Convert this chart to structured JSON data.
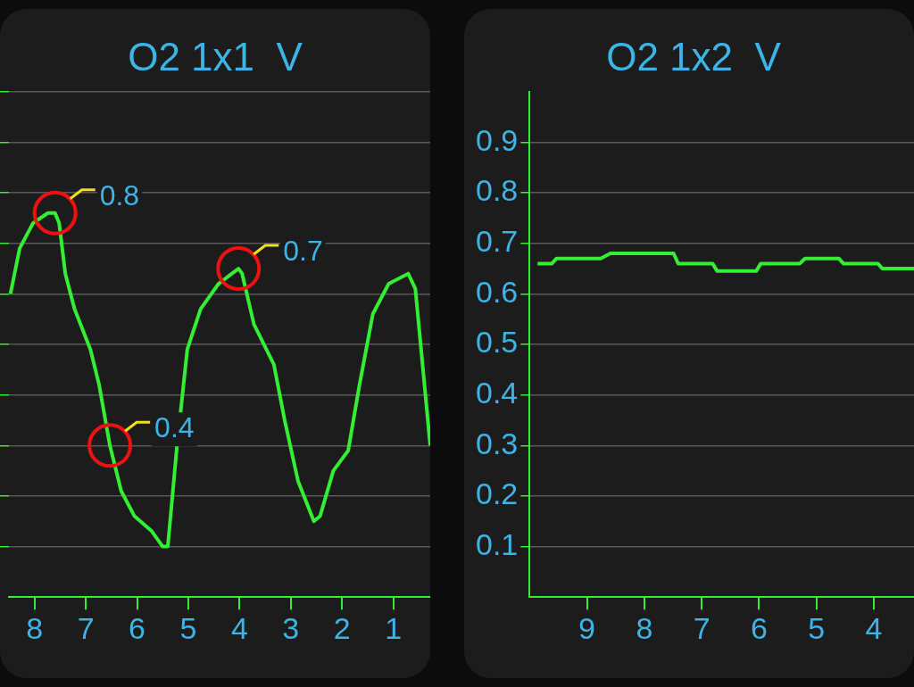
{
  "chart_data": [
    {
      "type": "line",
      "title": "O2 1x1  V",
      "x": [
        8.47,
        8.29,
        8.03,
        7.74,
        7.6,
        7.52,
        7.4,
        7.22,
        6.91,
        6.74,
        6.53,
        6.31,
        6.05,
        5.71,
        5.5,
        5.4,
        5.22,
        5.02,
        4.76,
        4.41,
        4.02,
        3.95,
        3.72,
        3.33,
        3.12,
        2.86,
        2.55,
        2.43,
        2.17,
        1.88,
        1.66,
        1.4,
        1.09,
        0.71,
        0.57,
        0.28
      ],
      "series": [
        {
          "color": "#33ee33",
          "values": [
            0.6,
            0.69,
            0.74,
            0.76,
            0.76,
            0.74,
            0.64,
            0.57,
            0.49,
            0.42,
            0.3,
            0.21,
            0.16,
            0.13,
            0.1,
            0.1,
            0.3,
            0.49,
            0.57,
            0.62,
            0.65,
            0.64,
            0.54,
            0.46,
            0.35,
            0.23,
            0.15,
            0.16,
            0.25,
            0.29,
            0.42,
            0.56,
            0.62,
            0.64,
            0.61,
            0.3
          ]
        }
      ],
      "xlim": [
        8.5,
        0.28
      ],
      "ylim": [
        0,
        1
      ],
      "xticks": [
        8,
        7,
        6,
        5,
        4,
        3,
        2,
        1
      ],
      "yticks": [
        0.1,
        0.2,
        0.3,
        0.4,
        0.5,
        0.6,
        0.7,
        0.8,
        0.9,
        {
          "value": 1,
          "label": null
        }
      ],
      "grid": "y",
      "tick_labels": "x",
      "annotations": [
        {
          "text": "0.8",
          "x": 7.6,
          "y": 0.76
        },
        {
          "text": "0.7",
          "x": 4.02,
          "y": 0.65
        },
        {
          "text": "0.4",
          "x": 6.53,
          "y": 0.3
        }
      ]
    },
    {
      "type": "line",
      "title": "O2 1x2  V",
      "x": [
        9.86,
        9.61,
        9.53,
        8.76,
        8.59,
        7.49,
        7.41,
        6.81,
        6.73,
        6.05,
        5.97,
        5.29,
        5.2,
        4.61,
        4.53,
        3.93,
        3.85,
        3.3
      ],
      "series": [
        {
          "color": "#33ee33",
          "values": [
            0.66,
            0.66,
            0.67,
            0.67,
            0.68,
            0.68,
            0.66,
            0.66,
            0.645,
            0.645,
            0.66,
            0.66,
            0.67,
            0.67,
            0.66,
            0.66,
            0.65,
            0.65
          ]
        }
      ],
      "xlim": [
        10,
        3.3
      ],
      "ylim": [
        0,
        1
      ],
      "xticks": [
        9,
        8,
        7,
        6,
        5,
        4
      ],
      "yticks": [
        0.1,
        0.2,
        0.3,
        0.4,
        0.5,
        0.6,
        0.7,
        0.8,
        0.9
      ],
      "grid": "y"
    }
  ]
}
